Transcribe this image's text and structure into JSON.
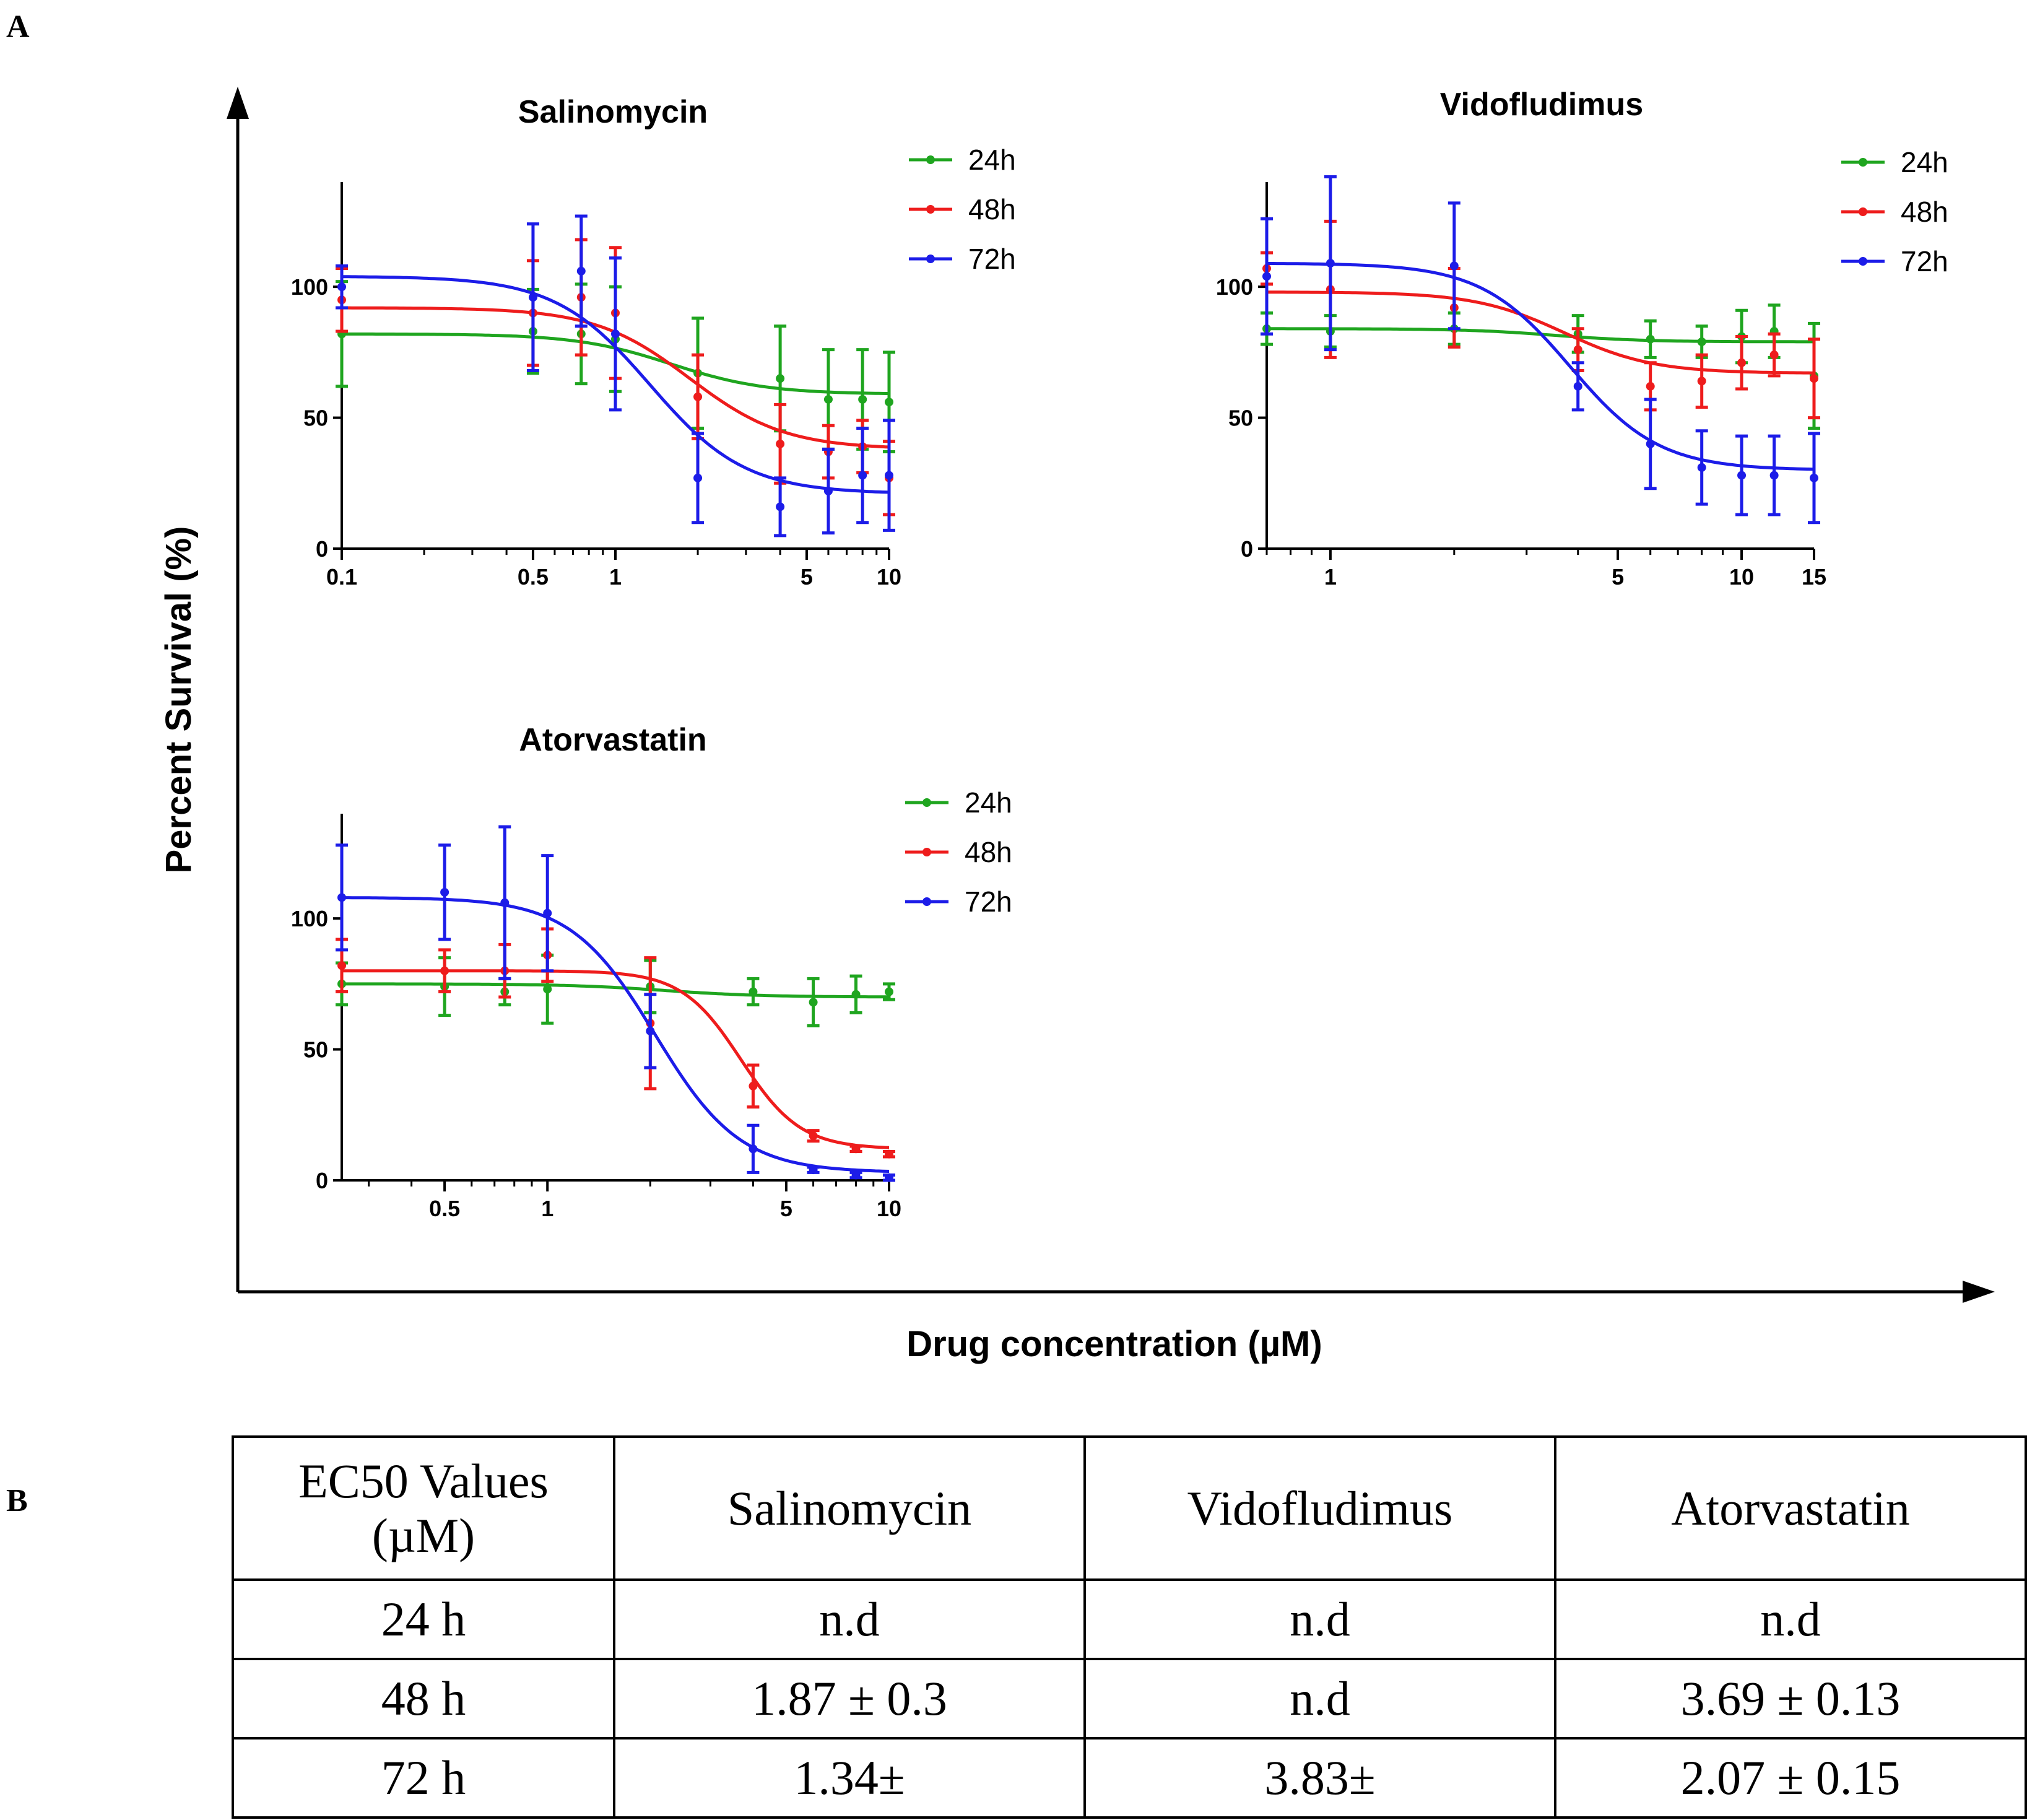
{
  "panel_a_label": "A",
  "panel_b_label": "B",
  "y_axis_label": "Percent Survival (%)",
  "x_axis_label": "Drug concentration (µM)",
  "colors": {
    "24h": "#1fa51f",
    "48h": "#ee1c1c",
    "72h": "#1c1ce8"
  },
  "chart_data": [
    {
      "type": "line",
      "title": "Salinomycin",
      "xscale": "log",
      "xlim": [
        0.1,
        10
      ],
      "ylim": [
        0,
        140
      ],
      "x_ticks": [
        0.1,
        0.5,
        1,
        5,
        10
      ],
      "x_tick_labels": [
        "0.1",
        "0.5",
        "1",
        "5",
        "10"
      ],
      "y_ticks": [
        0,
        50,
        100
      ],
      "y_tick_labels": [
        "0",
        "50",
        "100"
      ],
      "legend": [
        "24h",
        "48h",
        "72h"
      ],
      "x": [
        0.1,
        0.5,
        0.75,
        1,
        2,
        4,
        6,
        8,
        10
      ],
      "series": [
        {
          "name": "24h",
          "values": [
            82,
            83,
            82,
            80,
            67,
            65,
            57,
            57,
            56
          ],
          "errors": [
            20,
            16,
            19,
            20,
            21,
            20,
            19,
            19,
            19
          ],
          "fit": {
            "bottom": 59,
            "top": 82,
            "ec50": 1.6,
            "hill": 2.5
          }
        },
        {
          "name": "48h",
          "values": [
            95,
            90,
            96,
            90,
            58,
            40,
            37,
            39,
            27
          ],
          "errors": [
            12,
            20,
            22,
            25,
            16,
            15,
            10,
            10,
            14
          ],
          "fit": {
            "bottom": 38,
            "top": 92,
            "ec50": 1.87,
            "hill": 2.5
          }
        },
        {
          "name": "72h",
          "values": [
            100,
            96,
            106,
            82,
            27,
            16,
            22,
            28,
            28
          ],
          "errors": [
            8,
            28,
            21,
            29,
            17,
            11,
            16,
            18,
            21
          ],
          "fit": {
            "bottom": 21,
            "top": 104,
            "ec50": 1.34,
            "hill": 2.5
          }
        }
      ]
    },
    {
      "type": "line",
      "title": "Vidofludimus",
      "xscale": "log",
      "xlim": [
        0.7,
        15
      ],
      "ylim": [
        0,
        140
      ],
      "x_ticks": [
        1,
        5,
        10,
        15
      ],
      "x_tick_labels": [
        "1",
        "5",
        "10",
        "15"
      ],
      "y_ticks": [
        0,
        50,
        100
      ],
      "y_tick_labels": [
        "0",
        "50",
        "100"
      ],
      "legend": [
        "24h",
        "48h",
        "72h"
      ],
      "x": [
        0.7,
        1,
        2,
        4,
        6,
        8,
        10,
        12,
        15
      ],
      "series": [
        {
          "name": "24h",
          "values": [
            84,
            83,
            84,
            82,
            80,
            79,
            81,
            83,
            66
          ],
          "errors": [
            6,
            6,
            6,
            7,
            7,
            6,
            10,
            10,
            20
          ],
          "fit": {
            "bottom": 79,
            "top": 84,
            "ec50": 3.5,
            "hill": 4
          }
        },
        {
          "name": "48h",
          "values": [
            107,
            99,
            92,
            76,
            62,
            64,
            71,
            74,
            65
          ],
          "errors": [
            6,
            26,
            15,
            8,
            9,
            10,
            10,
            8,
            15
          ],
          "fit": {
            "bottom": 67,
            "top": 98,
            "ec50": 3.7,
            "hill": 4
          }
        },
        {
          "name": "72h",
          "values": [
            104,
            109,
            108,
            62,
            40,
            31,
            28,
            28,
            27
          ],
          "errors": [
            22,
            33,
            24,
            9,
            17,
            14,
            15,
            15,
            17
          ],
          "fit": {
            "bottom": 30,
            "top": 109,
            "ec50": 3.83,
            "hill": 4
          }
        }
      ]
    },
    {
      "type": "line",
      "title": "Atorvastatin",
      "xscale": "log",
      "xlim": [
        0.25,
        10
      ],
      "ylim": [
        0,
        140
      ],
      "x_ticks": [
        0.5,
        1,
        5,
        10
      ],
      "x_tick_labels": [
        "0.5",
        "1",
        "5",
        "10"
      ],
      "y_ticks": [
        0,
        50,
        100
      ],
      "y_tick_labels": [
        "0",
        "50",
        "100"
      ],
      "legend": [
        "24h",
        "48h",
        "72h"
      ],
      "x": [
        0.25,
        0.5,
        0.75,
        1,
        2,
        4,
        6,
        8,
        10
      ],
      "series": [
        {
          "name": "24h",
          "values": [
            75,
            74,
            72,
            73,
            74,
            72,
            68,
            71,
            72
          ],
          "errors": [
            8,
            11,
            5,
            13,
            10,
            5,
            9,
            7,
            3
          ],
          "fit": {
            "bottom": 70,
            "top": 75,
            "ec50": 2.2,
            "hill": 3
          }
        },
        {
          "name": "48h",
          "values": [
            82,
            80,
            80,
            86,
            60,
            36,
            17,
            12,
            10
          ],
          "errors": [
            10,
            8,
            10,
            10,
            25,
            8,
            2,
            1,
            1
          ],
          "fit": {
            "bottom": 12,
            "top": 80,
            "ec50": 3.69,
            "hill": 5
          }
        },
        {
          "name": "72h",
          "values": [
            108,
            110,
            106,
            102,
            57,
            12,
            4,
            2,
            1
          ],
          "errors": [
            20,
            18,
            29,
            22,
            14,
            9,
            1,
            1,
            1
          ],
          "fit": {
            "bottom": 3,
            "top": 108,
            "ec50": 2.07,
            "hill": 3.5
          }
        }
      ]
    }
  ],
  "table": {
    "corner_line1": "EC50 Values",
    "corner_line2": "(µM)",
    "columns": [
      "Salinomycin",
      "Vidofludimus",
      "Atorvastatin"
    ],
    "rows": [
      {
        "label": "24 h",
        "cells": [
          "n.d",
          "n.d",
          "n.d"
        ]
      },
      {
        "label": "48 h",
        "cells": [
          "1.87 ± 0.3",
          "n.d",
          "3.69 ± 0.13"
        ]
      },
      {
        "label": "72 h",
        "cells": [
          "1.34±",
          "3.83±",
          "2.07 ± 0.15"
        ]
      }
    ]
  }
}
